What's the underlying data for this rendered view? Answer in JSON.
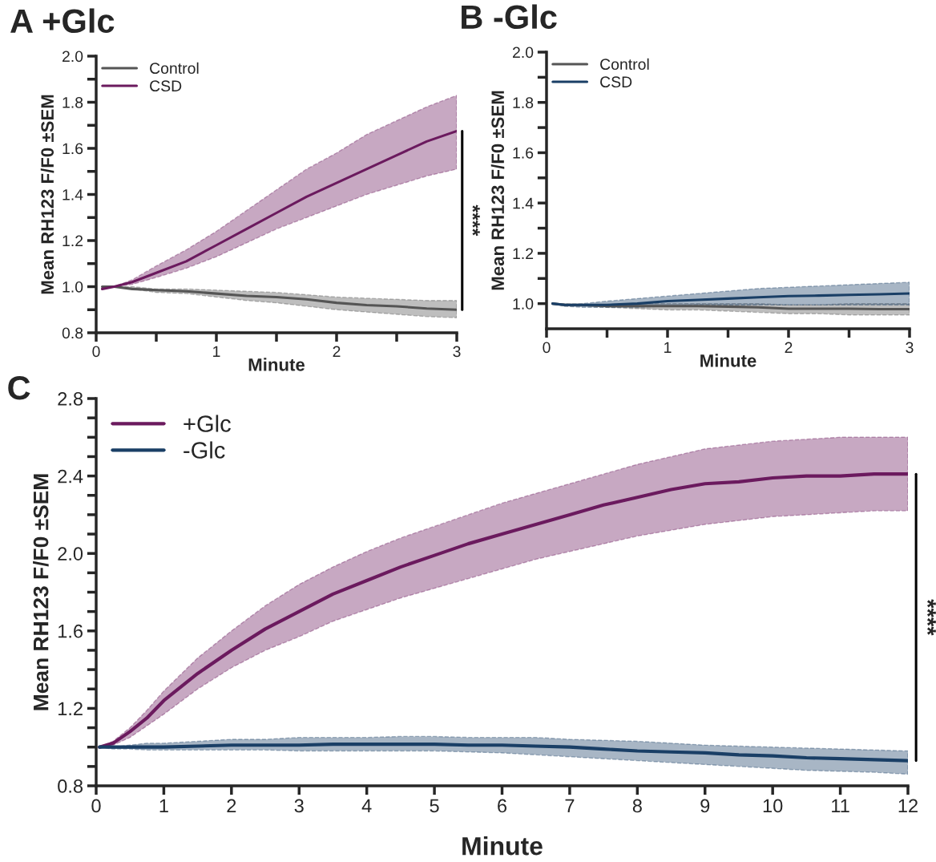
{
  "chart_data": [
    {
      "type": "line",
      "title": "A +Glc",
      "xlabel": "Minute",
      "ylabel": "Mean RH123 F/F0 ±SEM",
      "xlim": [
        0,
        3
      ],
      "ylim": [
        0.8,
        2.0
      ],
      "xticks": [
        0,
        {
          "value": 0.5,
          "label": null
        },
        1,
        {
          "value": 1.5,
          "label": null
        },
        2,
        {
          "value": 2.5,
          "label": null
        },
        3
      ],
      "yticks": [
        {
          "value": 0.8,
          "label": "0.8"
        },
        {
          "value": 0.9,
          "label": null
        },
        {
          "value": 1.0,
          "label": "1.0"
        },
        {
          "value": 1.1,
          "label": null
        },
        {
          "value": 1.2,
          "label": "1.2"
        },
        {
          "value": 1.3,
          "label": null
        },
        {
          "value": 1.4,
          "label": "1.4"
        },
        {
          "value": 1.5,
          "label": null
        },
        {
          "value": 1.6,
          "label": "1.6"
        },
        {
          "value": 1.7,
          "label": null
        },
        {
          "value": 1.8,
          "label": "1.8"
        },
        {
          "value": 1.9,
          "label": null
        },
        {
          "value": 2.0,
          "label": "2.0"
        }
      ],
      "legend": "top left",
      "grid": false,
      "marker": "none",
      "line_style": "solid",
      "annotations": [
        "****"
      ],
      "x": [
        0.05,
        0.15,
        0.3,
        0.5,
        0.75,
        1.0,
        1.25,
        1.5,
        1.75,
        2.0,
        2.25,
        2.5,
        2.75,
        3.0
      ],
      "series": [
        {
          "name": "Control",
          "color": "#555555",
          "values": [
            1.0,
            1.0,
            0.99,
            0.985,
            0.98,
            0.97,
            0.96,
            0.955,
            0.945,
            0.93,
            0.92,
            0.915,
            0.905,
            0.9
          ],
          "upper": [
            1.0,
            1.0,
            1.0,
            0.99,
            0.99,
            0.985,
            0.98,
            0.975,
            0.965,
            0.955,
            0.95,
            0.945,
            0.94,
            0.94
          ],
          "lower": [
            1.0,
            1.0,
            0.99,
            0.975,
            0.97,
            0.955,
            0.94,
            0.93,
            0.915,
            0.9,
            0.89,
            0.88,
            0.87,
            0.865
          ]
        },
        {
          "name": "CSD",
          "color": "#6b1a5e",
          "values": [
            0.99,
            1.0,
            1.02,
            1.06,
            1.11,
            1.18,
            1.25,
            1.32,
            1.39,
            1.45,
            1.51,
            1.57,
            1.63,
            1.675
          ],
          "upper": [
            1.0,
            1.0,
            1.03,
            1.09,
            1.16,
            1.24,
            1.33,
            1.42,
            1.51,
            1.58,
            1.66,
            1.72,
            1.78,
            1.83
          ],
          "lower": [
            0.99,
            1.0,
            1.01,
            1.04,
            1.08,
            1.13,
            1.19,
            1.25,
            1.3,
            1.35,
            1.4,
            1.44,
            1.48,
            1.51
          ]
        }
      ]
    },
    {
      "type": "line",
      "title": "B -Glc",
      "xlabel": "Minute",
      "ylabel": "Mean RH123 F/F0 ±SEM",
      "xlim": [
        0,
        3
      ],
      "ylim": [
        0.9,
        2.0
      ],
      "xticks": [
        0,
        {
          "value": 0.5,
          "label": null
        },
        1,
        {
          "value": 1.5,
          "label": null
        },
        2,
        {
          "value": 2.5,
          "label": null
        },
        3
      ],
      "yticks": [
        {
          "value": 1.0,
          "label": "1.0"
        },
        {
          "value": 1.1,
          "label": null
        },
        {
          "value": 1.2,
          "label": "1.2"
        },
        {
          "value": 1.3,
          "label": null
        },
        {
          "value": 1.4,
          "label": "1.4"
        },
        {
          "value": 1.5,
          "label": null
        },
        {
          "value": 1.6,
          "label": "1.6"
        },
        {
          "value": 1.7,
          "label": null
        },
        {
          "value": 1.8,
          "label": "1.8"
        },
        {
          "value": 1.9,
          "label": null
        },
        {
          "value": 2.0,
          "label": "2.0"
        }
      ],
      "legend": "top left",
      "grid": false,
      "marker": "none",
      "line_style": "solid",
      "x": [
        0.05,
        0.15,
        0.3,
        0.5,
        0.75,
        1.0,
        1.25,
        1.5,
        1.75,
        2.0,
        2.25,
        2.5,
        2.75,
        3.0
      ],
      "series": [
        {
          "name": "Control",
          "color": "#555555",
          "values": [
            1.0,
            0.995,
            0.995,
            0.99,
            0.99,
            0.99,
            0.99,
            0.988,
            0.985,
            0.98,
            0.98,
            0.98,
            0.978,
            0.978
          ],
          "upper": [
            1.0,
            1.0,
            0.995,
            0.995,
            1.0,
            1.0,
            1.0,
            1.0,
            1.0,
            0.995,
            0.995,
            1.0,
            1.0,
            1.0
          ],
          "lower": [
            1.0,
            0.99,
            0.99,
            0.985,
            0.98,
            0.975,
            0.975,
            0.97,
            0.965,
            0.96,
            0.96,
            0.955,
            0.955,
            0.955
          ]
        },
        {
          "name": "CSD",
          "color": "#1a3f66",
          "values": [
            1.0,
            0.995,
            0.995,
            0.995,
            1.0,
            1.01,
            1.015,
            1.02,
            1.025,
            1.03,
            1.032,
            1.035,
            1.037,
            1.04
          ],
          "upper": [
            1.0,
            0.995,
            1.0,
            1.01,
            1.02,
            1.03,
            1.04,
            1.05,
            1.06,
            1.065,
            1.07,
            1.075,
            1.08,
            1.085
          ],
          "lower": [
            1.0,
            0.99,
            0.985,
            0.985,
            0.985,
            0.99,
            0.995,
            0.995,
            0.995,
            0.995,
            0.995,
            0.995,
            0.995,
            0.995
          ]
        }
      ]
    },
    {
      "type": "line",
      "title": "C",
      "xlabel": "Minute",
      "ylabel": "Mean RH123 F/F0 ±SEM",
      "xlim": [
        0,
        12
      ],
      "ylim": [
        0.8,
        2.8
      ],
      "xticks": [
        0,
        1,
        2,
        3,
        4,
        5,
        6,
        7,
        8,
        9,
        10,
        11,
        12
      ],
      "yticks": [
        {
          "value": 0.8,
          "label": "0.8"
        },
        {
          "value": 0.9,
          "label": null
        },
        {
          "value": 1.0,
          "label": null
        },
        {
          "value": 1.1,
          "label": null
        },
        {
          "value": 1.2,
          "label": "1.2"
        },
        {
          "value": 1.3,
          "label": null
        },
        {
          "value": 1.4,
          "label": null
        },
        {
          "value": 1.5,
          "label": null
        },
        {
          "value": 1.6,
          "label": "1.6"
        },
        {
          "value": 1.7,
          "label": null
        },
        {
          "value": 1.8,
          "label": null
        },
        {
          "value": 1.9,
          "label": null
        },
        {
          "value": 2.0,
          "label": "2.0"
        },
        {
          "value": 2.1,
          "label": null
        },
        {
          "value": 2.2,
          "label": null
        },
        {
          "value": 2.3,
          "label": null
        },
        {
          "value": 2.4,
          "label": "2.4"
        },
        {
          "value": 2.5,
          "label": null
        },
        {
          "value": 2.6,
          "label": null
        },
        {
          "value": 2.7,
          "label": null
        },
        {
          "value": 2.8,
          "label": "2.8"
        }
      ],
      "legend": "top left",
      "grid": false,
      "marker": "none",
      "line_style": "solid",
      "annotations": [
        "****"
      ],
      "x": [
        0.05,
        0.25,
        0.5,
        0.75,
        1,
        1.5,
        2,
        2.5,
        3,
        3.5,
        4,
        4.5,
        5,
        5.5,
        6,
        6.5,
        7,
        7.5,
        8,
        8.5,
        9,
        9.5,
        10,
        10.5,
        11,
        11.5,
        12
      ],
      "series": [
        {
          "name": "+Glc",
          "color": "#6b1a5e",
          "values": [
            1.0,
            1.02,
            1.08,
            1.15,
            1.24,
            1.38,
            1.5,
            1.61,
            1.7,
            1.79,
            1.86,
            1.93,
            1.99,
            2.05,
            2.1,
            2.15,
            2.2,
            2.25,
            2.29,
            2.33,
            2.36,
            2.37,
            2.39,
            2.4,
            2.4,
            2.41,
            2.41
          ],
          "upper": [
            1.0,
            1.03,
            1.1,
            1.19,
            1.29,
            1.46,
            1.6,
            1.73,
            1.84,
            1.93,
            2.01,
            2.08,
            2.14,
            2.2,
            2.26,
            2.31,
            2.36,
            2.41,
            2.46,
            2.5,
            2.54,
            2.56,
            2.58,
            2.59,
            2.6,
            2.6,
            2.6
          ],
          "lower": [
            1.0,
            1.01,
            1.05,
            1.11,
            1.17,
            1.3,
            1.41,
            1.5,
            1.57,
            1.65,
            1.71,
            1.77,
            1.82,
            1.87,
            1.92,
            1.97,
            2.01,
            2.05,
            2.09,
            2.12,
            2.15,
            2.17,
            2.19,
            2.2,
            2.21,
            2.22,
            2.22
          ]
        },
        {
          "name": "-Glc",
          "color": "#1a3f66",
          "values": [
            1.0,
            1.0,
            1.0,
            1.0,
            1.0,
            1.005,
            1.01,
            1.01,
            1.01,
            1.015,
            1.015,
            1.015,
            1.015,
            1.01,
            1.01,
            1.005,
            1.0,
            0.99,
            0.98,
            0.975,
            0.97,
            0.96,
            0.955,
            0.945,
            0.94,
            0.935,
            0.93
          ],
          "upper": [
            1.0,
            1.0,
            1.01,
            1.02,
            1.02,
            1.03,
            1.04,
            1.04,
            1.05,
            1.05,
            1.05,
            1.055,
            1.055,
            1.05,
            1.05,
            1.05,
            1.04,
            1.035,
            1.03,
            1.02,
            1.01,
            1.005,
            1.0,
            0.995,
            0.99,
            0.985,
            0.98
          ],
          "lower": [
            1.0,
            0.99,
            0.99,
            0.985,
            0.985,
            0.985,
            0.985,
            0.985,
            0.98,
            0.98,
            0.98,
            0.98,
            0.98,
            0.975,
            0.97,
            0.96,
            0.95,
            0.94,
            0.93,
            0.92,
            0.91,
            0.9,
            0.89,
            0.88,
            0.875,
            0.87,
            0.86
          ]
        }
      ]
    }
  ]
}
